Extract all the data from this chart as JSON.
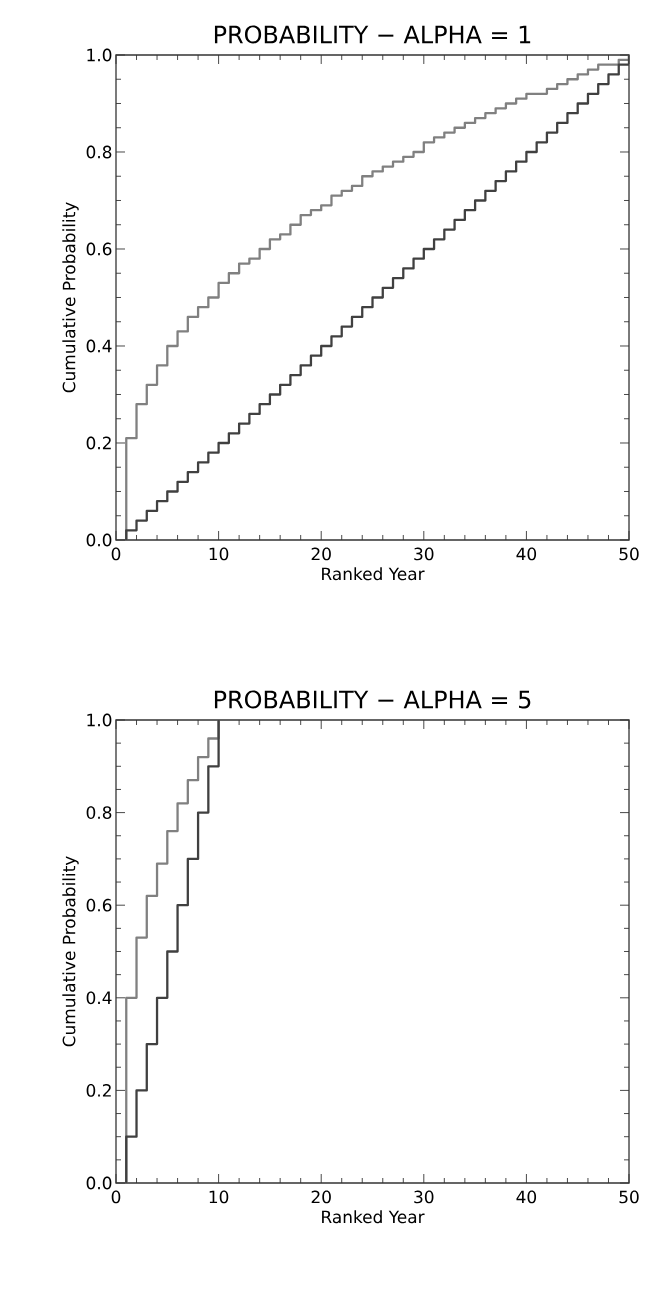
{
  "chart_data": [
    {
      "type": "step",
      "title": "PROBABILITY − ALPHA = 1",
      "xlabel": "Ranked Year",
      "ylabel": "Cumulative Probability",
      "xlim": [
        0,
        50
      ],
      "ylim": [
        0,
        1
      ],
      "xticks": [
        0,
        10,
        20,
        30,
        40,
        50
      ],
      "yticks": [
        {
          "value": 0,
          "label": "0.0"
        },
        {
          "value": 0.2,
          "label": "0.2"
        },
        {
          "value": 0.4,
          "label": "0.4"
        },
        {
          "value": 0.6,
          "label": "0.6"
        },
        {
          "value": 0.8,
          "label": "0.8"
        },
        {
          "value": 1,
          "label": "1.0"
        }
      ],
      "series": [
        {
          "color": "#808080",
          "x": [
            1,
            1,
            2,
            3,
            4,
            5,
            6,
            7,
            8,
            9,
            10,
            11,
            12,
            13,
            14,
            15,
            16,
            17,
            18,
            19,
            20,
            21,
            22,
            23,
            24,
            25,
            26,
            27,
            28,
            29,
            30,
            31,
            32,
            33,
            34,
            35,
            36,
            37,
            38,
            39,
            40,
            41,
            42,
            43,
            44,
            45,
            46,
            47,
            48,
            49,
            50
          ],
          "values": [
            0,
            0.21,
            0.28,
            0.32,
            0.36,
            0.4,
            0.43,
            0.46,
            0.48,
            0.5,
            0.53,
            0.55,
            0.57,
            0.58,
            0.6,
            0.62,
            0.63,
            0.65,
            0.67,
            0.68,
            0.69,
            0.71,
            0.72,
            0.73,
            0.75,
            0.76,
            0.77,
            0.78,
            0.79,
            0.8,
            0.82,
            0.83,
            0.84,
            0.85,
            0.86,
            0.87,
            0.88,
            0.89,
            0.9,
            0.91,
            0.92,
            0.92,
            0.93,
            0.94,
            0.95,
            0.96,
            0.97,
            0.98,
            0.98,
            0.99,
            1.0
          ]
        },
        {
          "color": "#404040",
          "x": [
            1,
            1,
            2,
            3,
            4,
            5,
            6,
            7,
            8,
            9,
            10,
            11,
            12,
            13,
            14,
            15,
            16,
            17,
            18,
            19,
            20,
            21,
            22,
            23,
            24,
            25,
            26,
            27,
            28,
            29,
            30,
            31,
            32,
            33,
            34,
            35,
            36,
            37,
            38,
            39,
            40,
            41,
            42,
            43,
            44,
            45,
            46,
            47,
            48,
            49,
            50
          ],
          "values": [
            0,
            0.02,
            0.04,
            0.06,
            0.08,
            0.1,
            0.12,
            0.14,
            0.16,
            0.18,
            0.2,
            0.22,
            0.24,
            0.26,
            0.28,
            0.3,
            0.32,
            0.34,
            0.36,
            0.38,
            0.4,
            0.42,
            0.44,
            0.46,
            0.48,
            0.5,
            0.52,
            0.54,
            0.56,
            0.58,
            0.6,
            0.62,
            0.64,
            0.66,
            0.68,
            0.7,
            0.72,
            0.74,
            0.76,
            0.78,
            0.8,
            0.82,
            0.84,
            0.86,
            0.88,
            0.9,
            0.92,
            0.94,
            0.96,
            0.98,
            1.0
          ]
        }
      ]
    },
    {
      "type": "step",
      "title": "PROBABILITY − ALPHA = 5",
      "xlabel": "Ranked Year",
      "ylabel": "Cumulative Probability",
      "xlim": [
        0,
        50
      ],
      "ylim": [
        0,
        1
      ],
      "xticks": [
        0,
        10,
        20,
        30,
        40,
        50
      ],
      "yticks": [
        {
          "value": 0,
          "label": "0.0"
        },
        {
          "value": 0.2,
          "label": "0.2"
        },
        {
          "value": 0.4,
          "label": "0.4"
        },
        {
          "value": 0.6,
          "label": "0.6"
        },
        {
          "value": 0.8,
          "label": "0.8"
        },
        {
          "value": 1,
          "label": "1.0"
        }
      ],
      "series": [
        {
          "color": "#808080",
          "x": [
            1,
            1,
            2,
            3,
            4,
            5,
            6,
            7,
            8,
            9,
            10
          ],
          "values": [
            0,
            0.4,
            0.53,
            0.62,
            0.69,
            0.76,
            0.82,
            0.87,
            0.92,
            0.96,
            1.0
          ]
        },
        {
          "color": "#404040",
          "x": [
            1,
            1,
            2,
            3,
            4,
            5,
            6,
            7,
            8,
            9,
            10
          ],
          "values": [
            0,
            0.1,
            0.2,
            0.3,
            0.4,
            0.5,
            0.6,
            0.7,
            0.8,
            0.9,
            1.0
          ]
        }
      ]
    }
  ]
}
